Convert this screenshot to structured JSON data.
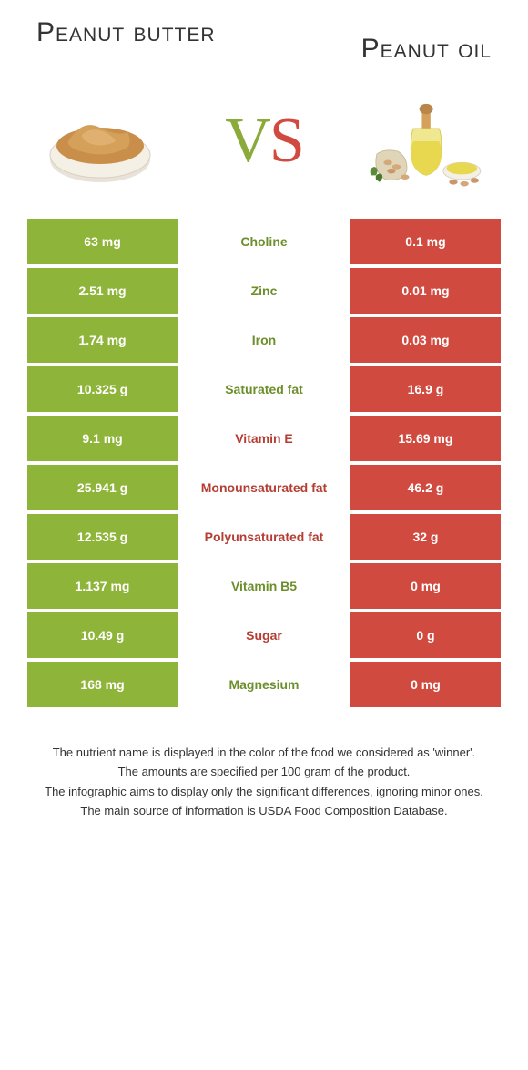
{
  "colors": {
    "left": "#8fb43a",
    "right": "#d14a3f",
    "mid_left": "#6d8f2b",
    "mid_right": "#b53d33",
    "white": "#ffffff",
    "text": "#333333"
  },
  "header": {
    "left_title": "Peanut butter",
    "right_title": "Peanut oil",
    "vs_v": "V",
    "vs_s": "S"
  },
  "rows": [
    {
      "left": "63 mg",
      "mid": "Choline",
      "right": "0.1 mg",
      "winner": "left"
    },
    {
      "left": "2.51 mg",
      "mid": "Zinc",
      "right": "0.01 mg",
      "winner": "left"
    },
    {
      "left": "1.74 mg",
      "mid": "Iron",
      "right": "0.03 mg",
      "winner": "left"
    },
    {
      "left": "10.325 g",
      "mid": "Saturated fat",
      "right": "16.9 g",
      "winner": "left"
    },
    {
      "left": "9.1 mg",
      "mid": "Vitamin E",
      "right": "15.69 mg",
      "winner": "right"
    },
    {
      "left": "25.941 g",
      "mid": "Monounsaturated fat",
      "right": "46.2 g",
      "winner": "right"
    },
    {
      "left": "12.535 g",
      "mid": "Polyunsaturated fat",
      "right": "32 g",
      "winner": "right"
    },
    {
      "left": "1.137 mg",
      "mid": "Vitamin B5",
      "right": "0 mg",
      "winner": "left"
    },
    {
      "left": "10.49 g",
      "mid": "Sugar",
      "right": "0 g",
      "winner": "right"
    },
    {
      "left": "168 mg",
      "mid": "Magnesium",
      "right": "0 mg",
      "winner": "left"
    }
  ],
  "footnotes": [
    "The nutrient name is displayed in the color of the food we considered as 'winner'.",
    "The amounts are specified per 100 gram of the product.",
    "The infographic aims to display only the significant differences, ignoring minor ones.",
    "The main source of information is USDA Food Composition Database."
  ]
}
